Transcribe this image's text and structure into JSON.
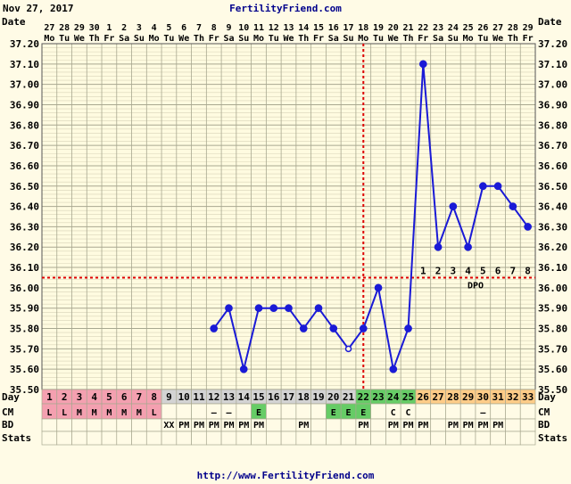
{
  "header": {
    "date": "Nov 27, 2017",
    "site": "FertilityFriend.com"
  },
  "footer": {
    "url": "http://www.FertilityFriend.com"
  },
  "chart_data": {
    "type": "line",
    "row_labels": [
      "Date",
      "Day",
      "CM",
      "BD",
      "Stats"
    ],
    "dates": [
      "27",
      "28",
      "29",
      "30",
      "1",
      "2",
      "3",
      "4",
      "5",
      "6",
      "7",
      "8",
      "9",
      "10",
      "11",
      "12",
      "13",
      "14",
      "15",
      "16",
      "17",
      "18",
      "19",
      "20",
      "21",
      "22",
      "23",
      "24",
      "25",
      "26",
      "27",
      "28",
      "29"
    ],
    "weekdays": [
      "Mo",
      "Tu",
      "We",
      "Th",
      "Fr",
      "Sa",
      "Su",
      "Mo",
      "Tu",
      "We",
      "Th",
      "Fr",
      "Sa",
      "Su",
      "Mo",
      "Tu",
      "We",
      "Th",
      "Fr",
      "Sa",
      "Su",
      "Mo",
      "Tu",
      "We",
      "Th",
      "Fr",
      "Sa",
      "Su",
      "Mo",
      "Tu",
      "We",
      "Th",
      "Fr"
    ],
    "days": [
      "1",
      "2",
      "3",
      "4",
      "5",
      "6",
      "7",
      "8",
      "9",
      "10",
      "11",
      "12",
      "13",
      "14",
      "15",
      "16",
      "17",
      "18",
      "19",
      "20",
      "21",
      "22",
      "23",
      "24",
      "25",
      "26",
      "27",
      "28",
      "29",
      "30",
      "31",
      "32",
      "33"
    ],
    "y_ticks": [
      "37.20",
      "37.10",
      "37.00",
      "36.90",
      "36.80",
      "36.70",
      "36.60",
      "36.50",
      "36.40",
      "36.30",
      "36.20",
      "36.10",
      "36.00",
      "35.90",
      "35.80",
      "35.70",
      "35.60",
      "35.50"
    ],
    "ylim": [
      35.5,
      37.2
    ],
    "temps": [
      null,
      null,
      null,
      null,
      null,
      null,
      null,
      null,
      null,
      null,
      null,
      35.8,
      35.9,
      35.6,
      35.9,
      35.9,
      35.9,
      35.8,
      35.9,
      35.8,
      35.7,
      35.8,
      36.0,
      35.6,
      35.8,
      37.1,
      36.2,
      36.4,
      36.2,
      36.5,
      36.5,
      36.4,
      36.3
    ],
    "open_points": [
      20
    ],
    "coverline": 36.05,
    "ovulation_day": 21,
    "dpo_labels": [
      "1",
      "2",
      "3",
      "4",
      "5",
      "6",
      "7",
      "8"
    ],
    "dpo_text": "DPO",
    "cm": [
      "L",
      "L",
      "M",
      "M",
      "M",
      "M",
      "M",
      "L",
      "",
      "",
      "",
      "–",
      "–",
      "",
      "E",
      "",
      "",
      "",
      "",
      "E",
      "E",
      "E",
      "",
      "C",
      "C",
      "",
      "",
      "",
      "",
      "–",
      "",
      "",
      ""
    ],
    "bd": [
      "",
      "",
      "",
      "",
      "",
      "",
      "",
      "",
      "XX",
      "PM",
      "PM",
      "PM",
      "PM",
      "PM",
      "PM",
      "",
      "",
      "PM",
      "",
      "",
      "",
      "PM",
      "",
      "PM",
      "PM",
      "PM",
      "",
      "PM",
      "PM",
      "PM",
      "PM",
      "",
      ""
    ],
    "day_colors": {
      "period": "#f4a0b0",
      "pre": "#d3d3d3",
      "fertile": "#66cc66",
      "post": "#ffcc88",
      "cm_fertile": "#66cc66"
    },
    "line_color": "#1a1ad6",
    "coverline_color": "#dd0000"
  }
}
